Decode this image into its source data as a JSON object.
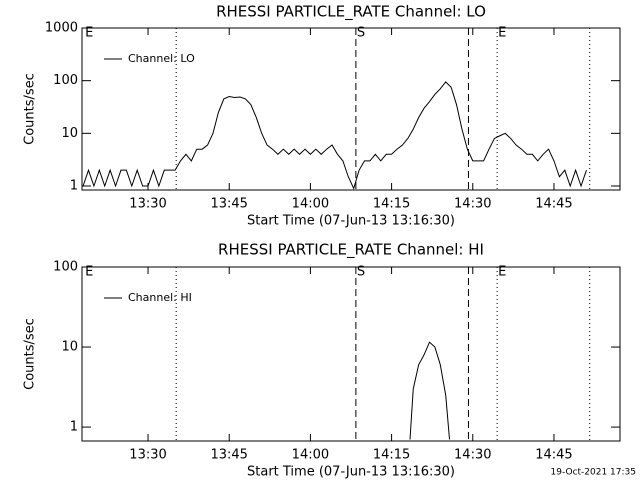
{
  "chart_data": [
    {
      "type": "line",
      "title": "RHESSI PARTICLE_RATE Channel: LO",
      "x_label": "Start Time (07-Jun-13 13:16:30)",
      "y_label": "Counts/sec",
      "log_y": true,
      "xlim": [
        17.8,
        117.2
      ],
      "ylim": [
        0.84,
        1000
      ],
      "xticks": [
        {
          "value": 30,
          "label": "13:30"
        },
        {
          "value": 45,
          "label": "13:45"
        },
        {
          "value": 60,
          "label": "14:00"
        },
        {
          "value": 75,
          "label": "14:15"
        },
        {
          "value": 90,
          "label": "14:30"
        },
        {
          "value": 105,
          "label": "14:45"
        }
      ],
      "yticks": [
        1,
        10,
        100,
        1000
      ],
      "vlines": [
        {
          "x": 35.2,
          "style": "dotted"
        },
        {
          "x": 68.4,
          "style": "dashed"
        },
        {
          "x": 89.2,
          "style": "dashed"
        },
        {
          "x": 94.5,
          "style": "dotted"
        },
        {
          "x": 111.6,
          "style": "dotted"
        }
      ],
      "annotations": [
        {
          "x": 18.2,
          "text": "E"
        },
        {
          "x": 68.4,
          "text": "S"
        },
        {
          "x": 94.5,
          "text": "E"
        }
      ],
      "legend": "upper left",
      "x": [
        18,
        19,
        20,
        21,
        22,
        23,
        24,
        25,
        26,
        27,
        28,
        29,
        30,
        31,
        32,
        33,
        34,
        35,
        36,
        37,
        38,
        39,
        40,
        41,
        42,
        43,
        44,
        45,
        46,
        47,
        48,
        49,
        50,
        51,
        52,
        53,
        54,
        55,
        56,
        57,
        58,
        59,
        60,
        61,
        62,
        63,
        64,
        65,
        66,
        67,
        68,
        69,
        70,
        71,
        72,
        73,
        74,
        75,
        76,
        77,
        78,
        79,
        80,
        81,
        82,
        83,
        84,
        85,
        86,
        87,
        88,
        89,
        90,
        91,
        92,
        93,
        94,
        95,
        96,
        97,
        98,
        99,
        100,
        101,
        102,
        103,
        104,
        105,
        106,
        107,
        108,
        109,
        110,
        111
      ],
      "series": [
        {
          "name": "Channel: LO",
          "color": "#000000",
          "values": [
            1,
            2,
            1,
            2,
            1,
            2,
            1,
            2,
            2,
            1,
            2,
            1,
            1,
            2,
            1,
            2,
            2,
            2,
            3,
            4,
            3,
            5,
            5,
            6,
            10,
            25,
            45,
            50,
            48,
            49,
            45,
            35,
            20,
            10,
            6,
            5,
            4,
            5,
            4,
            5,
            4,
            5,
            4,
            5,
            4,
            5,
            6,
            4,
            3,
            1.5,
            0.9,
            2,
            3,
            3,
            4,
            3,
            4,
            4,
            5,
            6,
            8,
            12,
            20,
            30,
            40,
            55,
            70,
            95,
            75,
            35,
            12,
            5,
            3,
            3,
            3,
            5,
            8,
            9,
            10,
            8,
            6,
            5,
            4,
            4,
            3,
            4,
            5,
            3,
            1.5,
            2,
            1,
            2,
            1,
            2
          ]
        }
      ]
    },
    {
      "type": "line",
      "title": "RHESSI PARTICLE_RATE Channel: HI",
      "x_label": "Start Time (07-Jun-13 13:16:30)",
      "y_label": "Counts/sec",
      "log_y": true,
      "xlim": [
        17.8,
        117.2
      ],
      "ylim": [
        0.67,
        100
      ],
      "xticks": [
        {
          "value": 30,
          "label": "13:30"
        },
        {
          "value": 45,
          "label": "13:45"
        },
        {
          "value": 60,
          "label": "14:00"
        },
        {
          "value": 75,
          "label": "14:15"
        },
        {
          "value": 90,
          "label": "14:30"
        },
        {
          "value": 105,
          "label": "14:45"
        }
      ],
      "yticks": [
        1,
        10,
        100
      ],
      "vlines": [
        {
          "x": 35.2,
          "style": "dotted"
        },
        {
          "x": 68.4,
          "style": "dashed"
        },
        {
          "x": 89.2,
          "style": "dashed"
        },
        {
          "x": 94.5,
          "style": "dotted"
        },
        {
          "x": 111.6,
          "style": "dotted"
        }
      ],
      "annotations": [
        {
          "x": 18.2,
          "text": "E"
        },
        {
          "x": 68.4,
          "text": "S"
        },
        {
          "x": 94.5,
          "text": "E"
        }
      ],
      "legend": "upper left",
      "x": [
        78.4,
        79,
        80,
        81,
        82,
        83,
        84,
        85,
        85.7
      ],
      "series": [
        {
          "name": "Channel: HI",
          "color": "#000000",
          "values": [
            0.7,
            3,
            6,
            8,
            11.5,
            10,
            6,
            2.5,
            0.7
          ]
        }
      ]
    }
  ],
  "footer": "19-Oct-2021 17:35"
}
